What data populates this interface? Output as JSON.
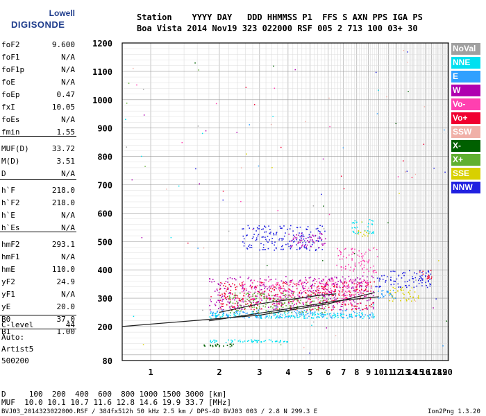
{
  "logo": {
    "top": "Lowell",
    "bottom": "DIGISONDE"
  },
  "header": {
    "line1": "Station    YYYY DAY   DDD HHMMSS P1  FFS S AXN PPS IGA PS",
    "line2": "Boa Vista 2014 Nov19 323 022000 RSF 005 2 713 100 03+ 30"
  },
  "params": [
    {
      "name": "foF2",
      "value": "9.600"
    },
    {
      "name": "foF1",
      "value": "N/A"
    },
    {
      "name": "foF1p",
      "value": "N/A"
    },
    {
      "name": "foE",
      "value": "N/A"
    },
    {
      "name": "foEp",
      "value": "0.47"
    },
    {
      "name": "fxI",
      "value": "10.05"
    },
    {
      "name": "foEs",
      "value": "N/A"
    },
    {
      "name": "fmin",
      "value": "1.55"
    },
    {
      "name": "MUF(D)",
      "value": "33.72"
    },
    {
      "name": "M(D)",
      "value": "3.51"
    },
    {
      "name": "D",
      "value": "N/A"
    },
    {
      "name": "h`F",
      "value": "218.0"
    },
    {
      "name": "h`F2",
      "value": "218.0"
    },
    {
      "name": "h`E",
      "value": "N/A"
    },
    {
      "name": "h`Es",
      "value": "N/A"
    },
    {
      "name": "hmF2",
      "value": "293.1"
    },
    {
      "name": "hmF1",
      "value": "N/A"
    },
    {
      "name": "hmE",
      "value": "110.0"
    },
    {
      "name": "yF2",
      "value": "24.9"
    },
    {
      "name": "yF1",
      "value": "N/A"
    },
    {
      "name": "yE",
      "value": "20.0"
    },
    {
      "name": "B0",
      "value": "37.0"
    },
    {
      "name": "B1",
      "value": "1.00"
    },
    {
      "name": "C-level",
      "value": "44"
    }
  ],
  "auto": {
    "line1": "Auto:",
    "line2": "Artist5",
    "line3": "500200"
  },
  "legend": [
    {
      "label": "NoVal",
      "color": "#a0a0a0"
    },
    {
      "label": "NNE",
      "color": "#00e0f0"
    },
    {
      "label": "E",
      "color": "#30a0ff"
    },
    {
      "label": "W",
      "color": "#b000b0"
    },
    {
      "label": "Vo-",
      "color": "#ff40b0"
    },
    {
      "label": "Vo+",
      "color": "#f00030"
    },
    {
      "label": "SSW",
      "color": "#f0b0a8"
    },
    {
      "label": "X-",
      "color": "#006000"
    },
    {
      "label": "X+",
      "color": "#60b030"
    },
    {
      "label": "SSE",
      "color": "#d8d000"
    },
    {
      "label": "NNW",
      "color": "#2020e0"
    }
  ],
  "footer": {
    "dist_line": "D     100  200  400  600  800 1000 1500 3000 [km]",
    "muf_line": "MUF  10.0 10.1 10.7 11.6 12.8 14.6 19.9 33.7 [MHz]",
    "file_line": "BVJ03_2014323022000.RSF / 384fx512h 50 kHz 2.5 km / DPS-4D BVJ03 003 / 2.8 N 299.3 E",
    "version": "Ion2Png 1.3.20"
  },
  "chart_data": {
    "type": "scatter",
    "x_ticks": [
      "1",
      "2",
      "3",
      "4",
      "5",
      "6",
      "7",
      "8",
      "9",
      "10",
      "11",
      "12",
      "13",
      "14",
      "15",
      "16",
      "17",
      "18",
      "19",
      "20"
    ],
    "y_ticks": [
      "80",
      "200",
      "300",
      "400",
      "500",
      "600",
      "700",
      "800",
      "900",
      "1000",
      "1100",
      "1200"
    ],
    "xlim": [
      0.75,
      20.2
    ],
    "ylim": [
      80,
      1200
    ],
    "grid": true,
    "xscale": "log",
    "regions": [
      {
        "series": "W",
        "f": [
          1.8,
          9.5
        ],
        "h": [
          260,
          380
        ]
      },
      {
        "series": "Vo+",
        "f": [
          2.0,
          9.5
        ],
        "h": [
          260,
          360
        ]
      },
      {
        "series": "Vo-",
        "f": [
          2.5,
          9.0
        ],
        "h": [
          280,
          370
        ]
      },
      {
        "series": "E",
        "f": [
          1.8,
          9.5
        ],
        "h": [
          230,
          260
        ]
      },
      {
        "series": "NNE",
        "f": [
          1.8,
          9.5
        ],
        "h": [
          230,
          250
        ]
      },
      {
        "series": "NNW",
        "f": [
          9.5,
          17.0
        ],
        "h": [
          340,
          400
        ]
      },
      {
        "series": "Vo+",
        "f": [
          15.0,
          17.0
        ],
        "h": [
          370,
          400
        ]
      },
      {
        "series": "SSE",
        "f": [
          11.0,
          15.0
        ],
        "h": [
          290,
          340
        ]
      },
      {
        "series": "NNW",
        "f": [
          2.5,
          5.8
        ],
        "h": [
          470,
          560
        ]
      },
      {
        "series": "NNE",
        "f": [
          7.5,
          9.5
        ],
        "h": [
          530,
          580
        ]
      },
      {
        "series": "NNE",
        "f": [
          1.8,
          4.0
        ],
        "h": [
          145,
          155
        ]
      },
      {
        "series": "X-",
        "f": [
          1.7,
          2.3
        ],
        "h": [
          130,
          140
        ]
      },
      {
        "series": "W",
        "f": [
          4.0,
          5.8
        ],
        "h": [
          480,
          530
        ]
      },
      {
        "series": "SSE",
        "f": [
          8.0,
          9.0
        ],
        "h": [
          520,
          540
        ]
      },
      {
        "series": "E",
        "f": [
          9.5,
          12.0
        ],
        "h": [
          300,
          330
        ]
      },
      {
        "series": "Vo-",
        "f": [
          6.5,
          9.8
        ],
        "h": [
          390,
          480
        ]
      },
      {
        "series": "X+",
        "f": [
          2.2,
          6.0
        ],
        "h": [
          250,
          320
        ]
      }
    ],
    "trace_lines": [
      {
        "f": [
          0.75,
          3.0,
          6.0,
          9.6
        ],
        "h": [
          200,
          240,
          280,
          320
        ]
      },
      {
        "f": [
          1.8,
          3.5,
          6.5,
          10.0
        ],
        "h": [
          220,
          255,
          290,
          305
        ]
      },
      {
        "f": [
          2.0,
          3.0,
          4.5,
          5.5,
          6.5
        ],
        "h": [
          250,
          280,
          300,
          310,
          315
        ]
      }
    ]
  }
}
